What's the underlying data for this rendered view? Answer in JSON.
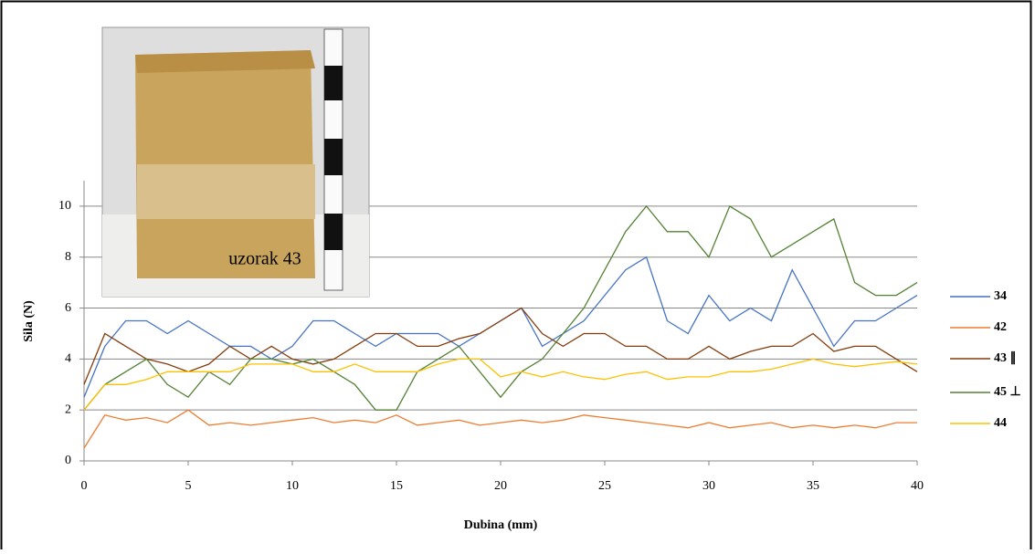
{
  "chart_data": {
    "type": "line",
    "annotation": "uzorak 43",
    "x_label": "Dubina (mm)",
    "y_label": "Sila (N)",
    "x": [
      0,
      1,
      2,
      3,
      4,
      5,
      6,
      7,
      8,
      9,
      10,
      11,
      12,
      13,
      14,
      15,
      16,
      17,
      18,
      19,
      20,
      21,
      22,
      23,
      24,
      25,
      26,
      27,
      28,
      29,
      30,
      31,
      32,
      33,
      34,
      35,
      36,
      37,
      38,
      39,
      40
    ],
    "series": [
      {
        "name": "34",
        "color": "#4472c4",
        "values": [
          2.5,
          4.5,
          5.5,
          5.5,
          5,
          5.5,
          5,
          4.5,
          4.5,
          4,
          4.5,
          5.5,
          5.5,
          5,
          4.5,
          5,
          5,
          5,
          4.5,
          5,
          5.5,
          6,
          4.5,
          5,
          5.5,
          6.5,
          7.5,
          8,
          5.5,
          5,
          6.5,
          5.5,
          6,
          5.5,
          7.5,
          6,
          4.5,
          5.5,
          5.5,
          6,
          6.5
        ]
      },
      {
        "name": "42",
        "color": "#ed7d31",
        "values": [
          0.5,
          1.8,
          1.6,
          1.7,
          1.5,
          2,
          1.4,
          1.5,
          1.4,
          1.5,
          1.6,
          1.7,
          1.5,
          1.6,
          1.5,
          1.8,
          1.4,
          1.5,
          1.6,
          1.4,
          1.5,
          1.6,
          1.5,
          1.6,
          1.8,
          1.7,
          1.6,
          1.5,
          1.4,
          1.3,
          1.5,
          1.3,
          1.4,
          1.5,
          1.3,
          1.4,
          1.3,
          1.4,
          1.3,
          1.5,
          1.5
        ]
      },
      {
        "name": "43 ∥",
        "color": "#843c0c",
        "values": [
          3,
          5,
          4.5,
          4,
          3.8,
          3.5,
          3.8,
          4.5,
          4,
          4.5,
          4,
          3.8,
          4,
          4.5,
          5,
          5,
          4.5,
          4.5,
          4.8,
          5,
          5.5,
          6,
          5,
          4.5,
          5,
          5,
          4.5,
          4.5,
          4,
          4,
          4.5,
          4,
          4.3,
          4.5,
          4.5,
          5,
          4.3,
          4.5,
          4.5,
          4,
          3.5
        ]
      },
      {
        "name": "45 ⊥",
        "color": "#548235",
        "values": [
          2,
          3,
          3.5,
          4,
          3,
          2.5,
          3.5,
          3,
          4,
          4,
          3.8,
          4,
          3.5,
          3,
          2,
          2,
          3.5,
          4,
          4.5,
          3.5,
          2.5,
          3.5,
          4,
          5,
          6,
          7.5,
          9,
          10,
          9,
          9,
          8,
          10,
          9.5,
          8,
          8.5,
          9,
          9.5,
          7,
          6.5,
          6.5,
          7
        ]
      },
      {
        "name": "44",
        "color": "#ffc000",
        "values": [
          2,
          3,
          3,
          3.2,
          3.5,
          3.5,
          3.5,
          3.5,
          3.8,
          3.8,
          3.8,
          3.5,
          3.5,
          3.8,
          3.5,
          3.5,
          3.5,
          3.8,
          4,
          4,
          3.3,
          3.5,
          3.3,
          3.5,
          3.3,
          3.2,
          3.4,
          3.5,
          3.2,
          3.3,
          3.3,
          3.5,
          3.5,
          3.6,
          3.8,
          4,
          3.8,
          3.7,
          3.8,
          3.9,
          3.8
        ]
      }
    ],
    "xlim": [
      0,
      40
    ],
    "xticks": [
      0,
      5,
      10,
      15,
      20,
      25,
      30,
      35,
      40
    ],
    "ylim": [
      0,
      11
    ],
    "yticks": [
      0,
      2,
      4,
      6,
      8,
      10
    ],
    "grid": true,
    "legend": "right"
  }
}
